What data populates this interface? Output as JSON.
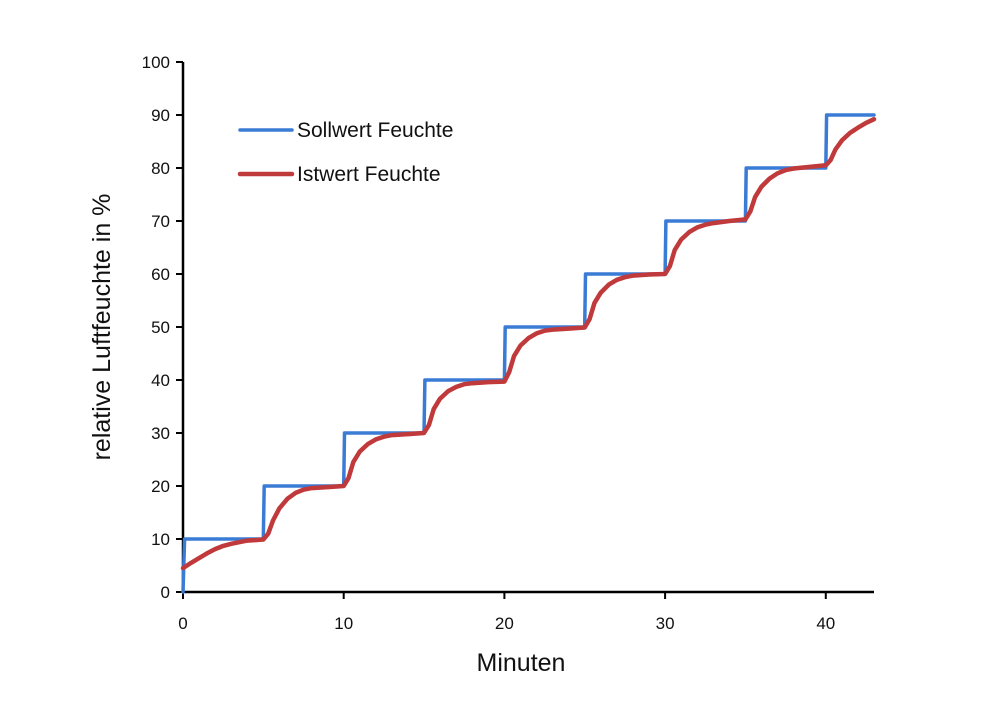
{
  "chart_data": {
    "type": "line",
    "title": "",
    "xlabel": "Minuten",
    "ylabel": "relative Luftfeuchte in  %",
    "xlim": [
      0,
      43
    ],
    "ylim": [
      0,
      100
    ],
    "x_ticks": [
      "0",
      "10",
      "20",
      "30",
      "40"
    ],
    "x_tick_values": [
      0,
      10,
      20,
      30,
      40
    ],
    "y_ticks": [
      "0",
      "10",
      "20",
      "30",
      "40",
      "50",
      "60",
      "70",
      "80",
      "90",
      "100"
    ],
    "y_tick_values": [
      0,
      10,
      20,
      30,
      40,
      50,
      60,
      70,
      80,
      90,
      100
    ],
    "grid": false,
    "legend_position": "top-left",
    "series": [
      {
        "name": "Sollwert Feuchte",
        "color": "#3a7bd5",
        "x": [
          0,
          0.1,
          5,
          5.05,
          10,
          10.05,
          15,
          15.05,
          20,
          20.05,
          25,
          25.05,
          30,
          30.05,
          35,
          35.05,
          40,
          40.05,
          43
        ],
        "y": [
          0,
          10,
          10,
          20,
          20,
          30,
          30,
          40,
          40,
          50,
          50,
          60,
          60,
          70,
          70,
          80,
          80,
          90,
          90
        ]
      },
      {
        "name": "Istwert Feuchte",
        "color": "#c0393b",
        "x": [
          0,
          0.5,
          1,
          1.5,
          2,
          2.5,
          3,
          3.5,
          4,
          4.5,
          5,
          5.3,
          5.6,
          6,
          6.5,
          7,
          7.5,
          8,
          9,
          10,
          10.3,
          10.6,
          11,
          11.5,
          12,
          12.5,
          13,
          14,
          15,
          15.3,
          15.6,
          16,
          16.5,
          17,
          17.5,
          18,
          19,
          20,
          20.3,
          20.6,
          21,
          21.5,
          22,
          22.5,
          23,
          24,
          25,
          25.3,
          25.6,
          26,
          26.5,
          27,
          27.5,
          28,
          29,
          30,
          30.3,
          30.6,
          31,
          31.5,
          32,
          32.5,
          33,
          34,
          35,
          35.3,
          35.6,
          36,
          36.5,
          37,
          37.5,
          38,
          39,
          40,
          40.3,
          40.6,
          41,
          41.5,
          42,
          42.5,
          43
        ],
        "y": [
          4.5,
          5.5,
          6.4,
          7.3,
          8.1,
          8.7,
          9.1,
          9.4,
          9.7,
          9.8,
          9.9,
          11,
          13.5,
          15.8,
          17.6,
          18.7,
          19.3,
          19.6,
          19.8,
          20,
          21.5,
          24.5,
          26.5,
          27.9,
          28.8,
          29.3,
          29.6,
          29.8,
          30,
          31.5,
          34.5,
          36.5,
          37.9,
          38.7,
          39.2,
          39.4,
          39.6,
          39.7,
          41.5,
          44.5,
          46.5,
          47.9,
          48.8,
          49.3,
          49.5,
          49.7,
          49.9,
          51.5,
          54.5,
          56.5,
          58,
          58.9,
          59.4,
          59.7,
          59.9,
          60,
          61.5,
          64.5,
          66.5,
          67.9,
          68.8,
          69.3,
          69.6,
          70,
          70.3,
          71.8,
          74.5,
          76.5,
          78,
          79,
          79.6,
          79.9,
          80.2,
          80.5,
          81.5,
          83.5,
          85.2,
          86.6,
          87.6,
          88.5,
          89.2
        ]
      }
    ]
  }
}
